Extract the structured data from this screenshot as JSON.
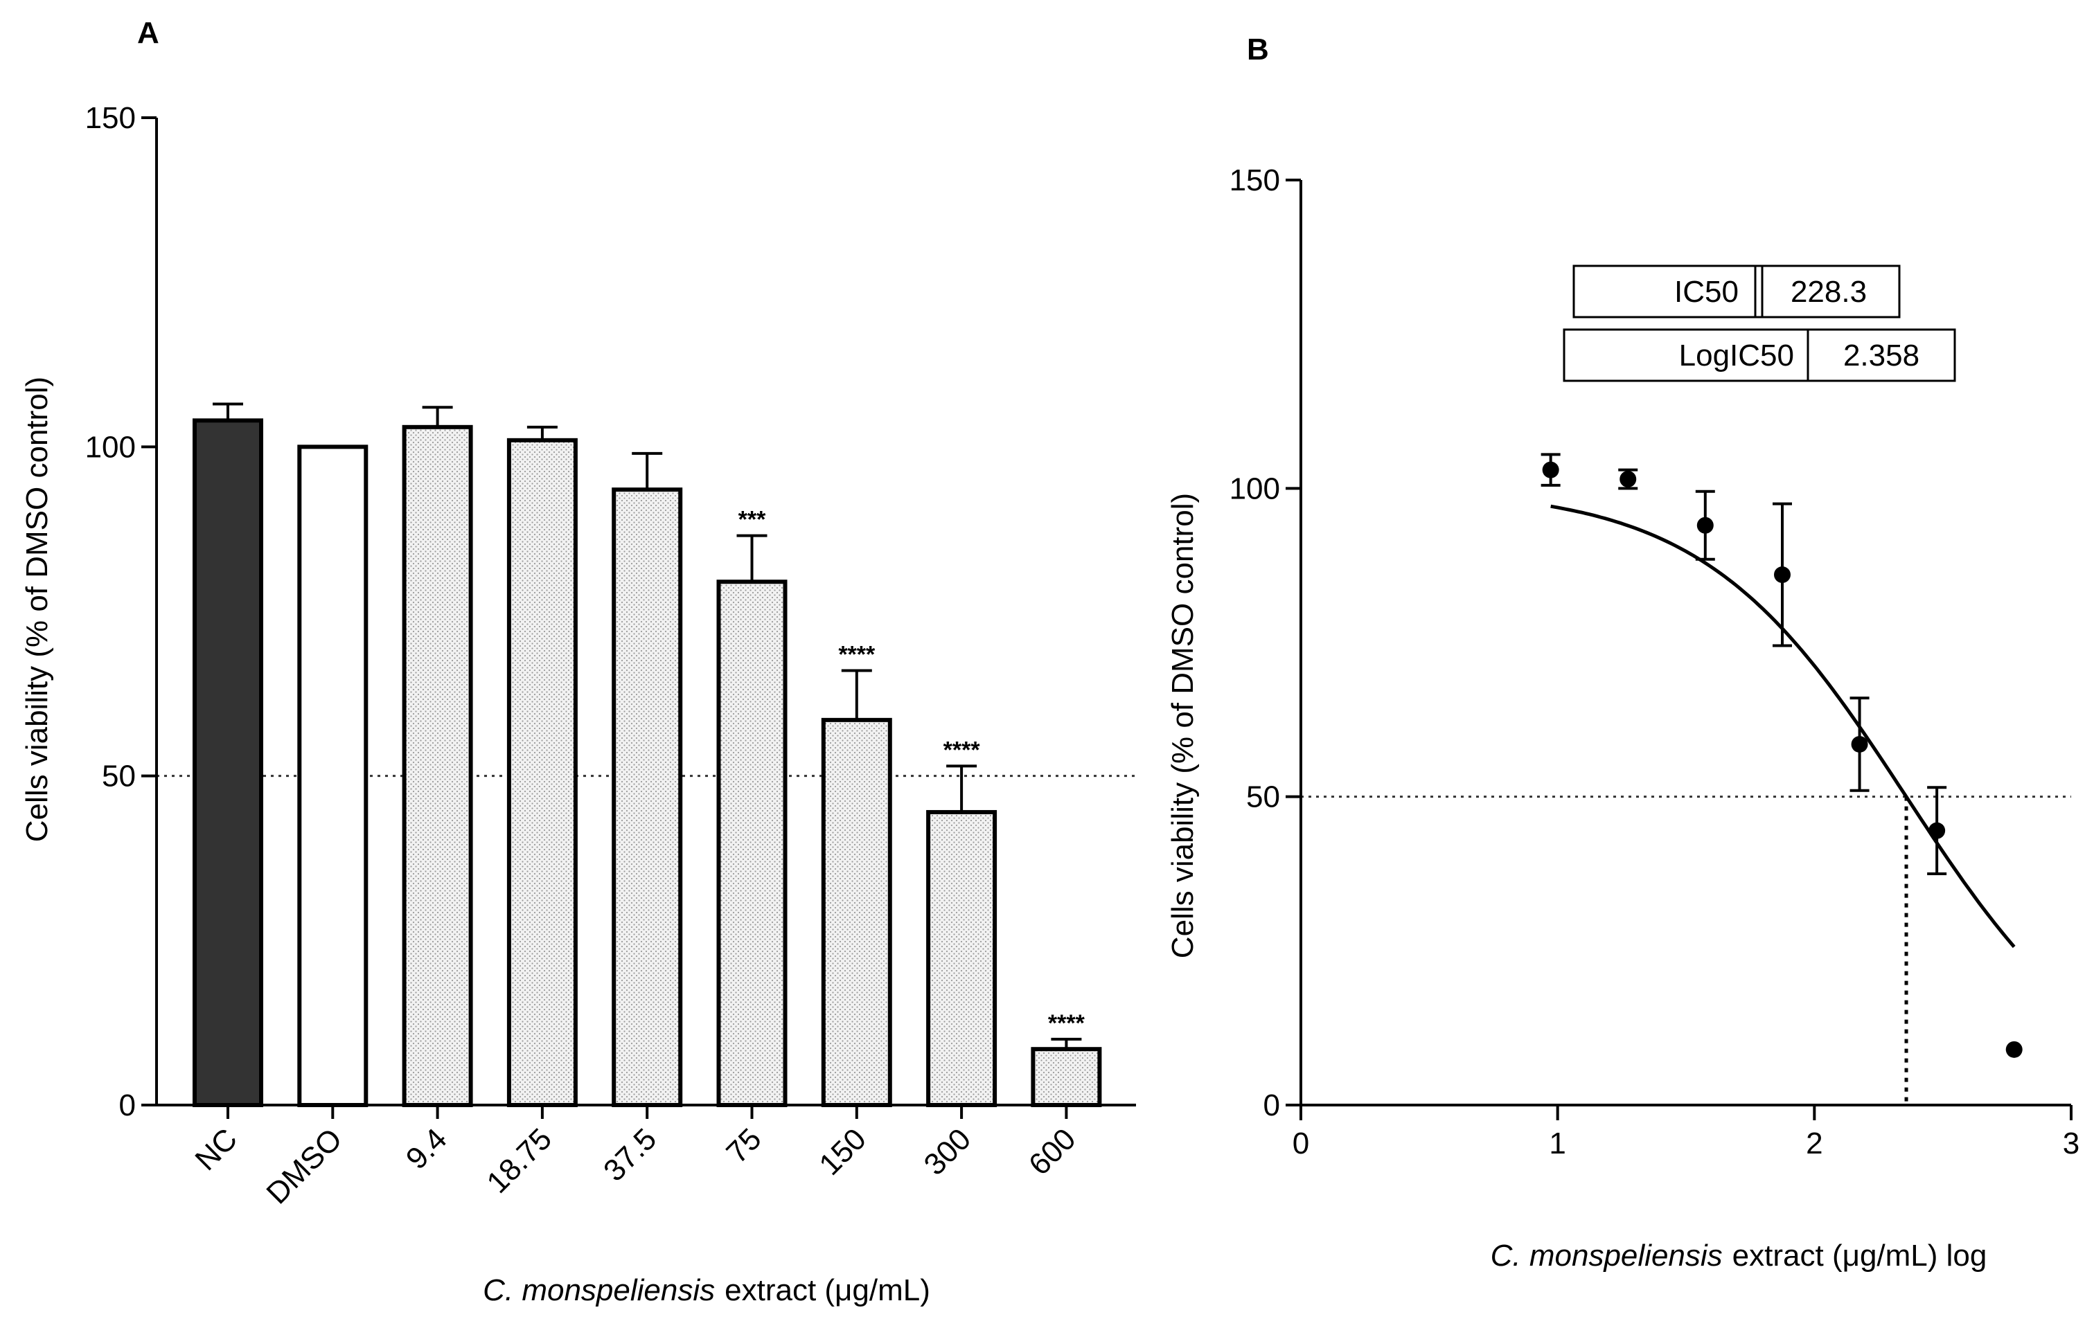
{
  "chart_data": [
    {
      "panel": "A",
      "type": "bar",
      "categories": [
        "NC",
        "DMSO",
        "9.4",
        "18.75",
        "37.5",
        "75",
        "150",
        "300",
        "600"
      ],
      "values": [
        104,
        100,
        103,
        101,
        93.5,
        79.5,
        58.5,
        44.5,
        8.5
      ],
      "errors": [
        2.5,
        0,
        3,
        2,
        5.5,
        7,
        7.5,
        7,
        1.5
      ],
      "significance": [
        "",
        "",
        "",
        "",
        "",
        "***",
        "****",
        "****",
        "****"
      ],
      "fills": [
        "dark",
        "white",
        "dotted",
        "dotted",
        "dotted",
        "dotted",
        "dotted",
        "dotted",
        "dotted"
      ],
      "reference_line": 50,
      "ylim": [
        0,
        150
      ],
      "yticks": [
        0,
        50,
        100,
        150
      ],
      "ylabel": "Cells viability (% of DMSO control)",
      "xlabel_italic": "C. monspeliensis",
      "xlabel_rest": "extract  (μg/mL)"
    },
    {
      "panel": "B",
      "type": "scatter",
      "x": [
        0.973,
        1.274,
        1.575,
        1.875,
        2.176,
        2.477,
        2.778
      ],
      "y": [
        103,
        101.5,
        94,
        86,
        58.5,
        44.5,
        9
      ],
      "errors": [
        2.5,
        1.5,
        5.5,
        11.5,
        7.5,
        7,
        0
      ],
      "fit": {
        "type": "sigmoid",
        "top": 100,
        "bottom": 0,
        "logIC50": 2.358,
        "hill": 1.1,
        "x_range": [
          0.973,
          2.778
        ]
      },
      "reference_line": 50,
      "xlim": [
        0,
        3
      ],
      "ylim": [
        0,
        150
      ],
      "xticks": [
        0,
        1,
        2,
        3
      ],
      "yticks": [
        0,
        50,
        100,
        150
      ],
      "ylabel": "Cells viability (% of DMSO control)",
      "xlabel_italic": "C. monspeliensis",
      "xlabel_rest": "extract  (μg/mL) log",
      "table": [
        {
          "label": "IC50",
          "value": "228.3"
        },
        {
          "label": "LogIC50",
          "value": "2.358"
        }
      ]
    }
  ]
}
